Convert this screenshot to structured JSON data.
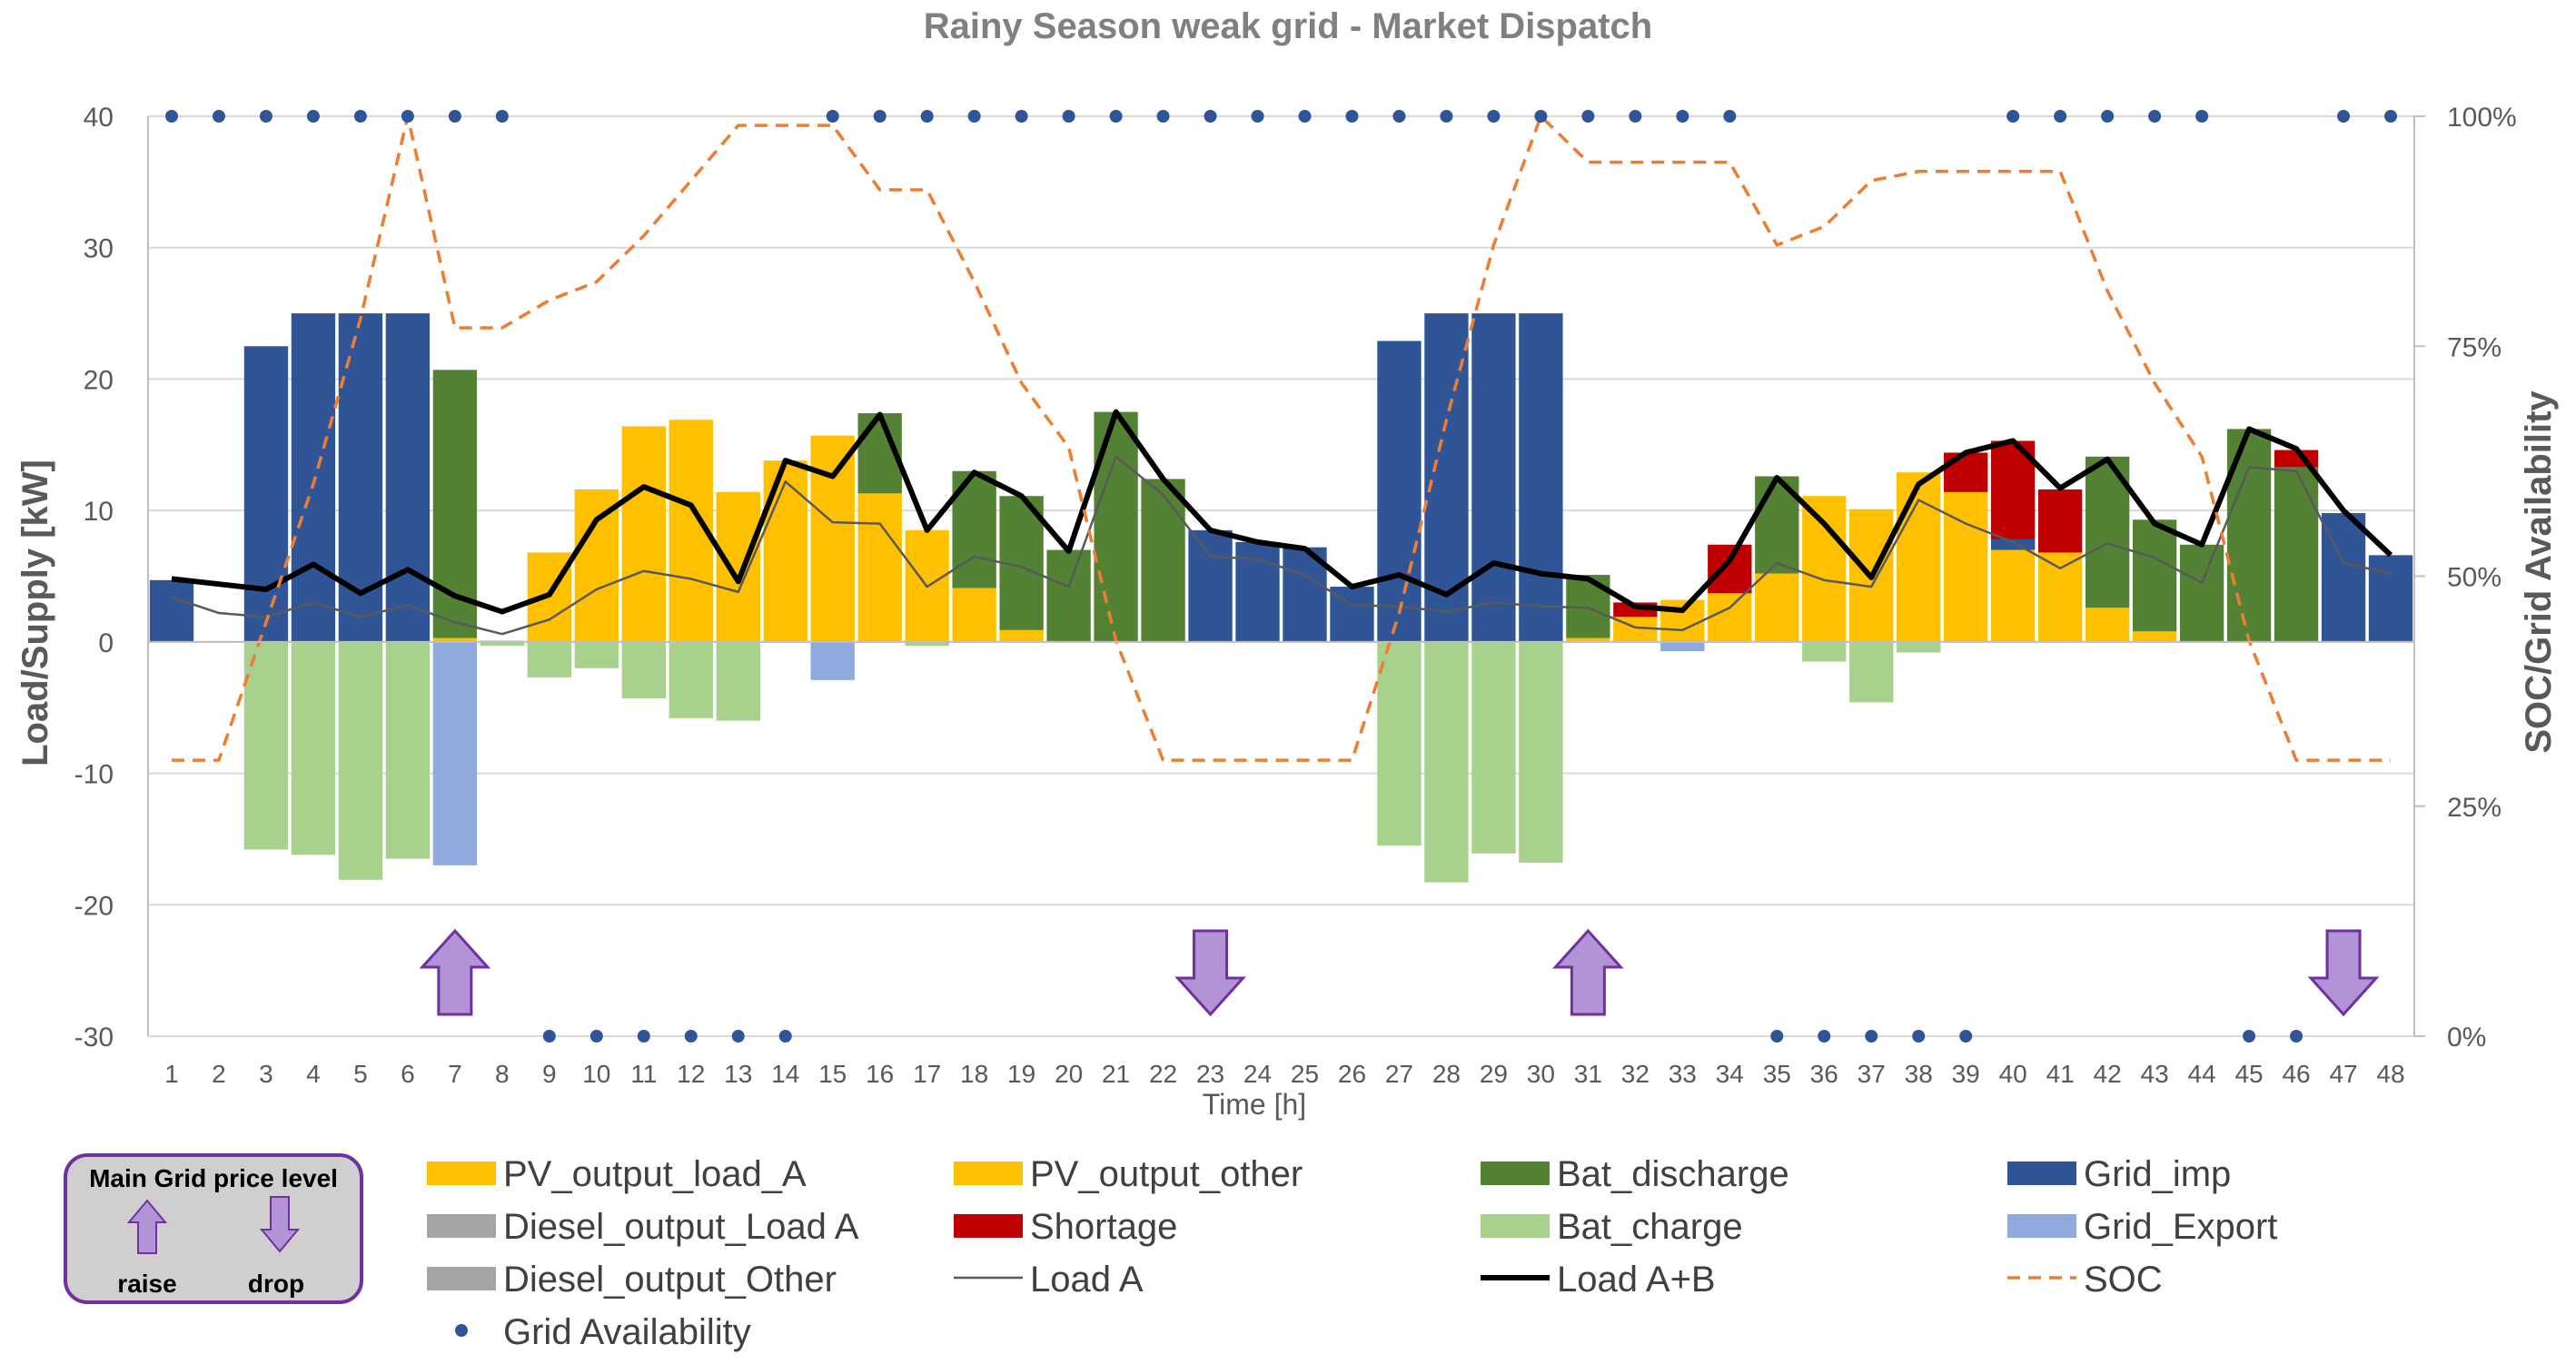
{
  "chart_data": {
    "type": "bar",
    "title": "Rainy Season weak grid - Market Dispatch",
    "xlabel": "Time [h]",
    "ylabel": "Load/Supply [kW]",
    "y2label": "SOC/Grid Availability",
    "ylim": [
      -30,
      40
    ],
    "y_ticks": [
      "-30",
      "-20",
      "-10",
      "0",
      "10",
      "20",
      "30",
      "40"
    ],
    "y2lim": [
      0,
      1
    ],
    "y2_ticks": [
      "0%",
      "25%",
      "50%",
      "75%",
      "100%"
    ],
    "categories": [
      "1",
      "2",
      "3",
      "4",
      "5",
      "6",
      "7",
      "8",
      "9",
      "10",
      "11",
      "12",
      "13",
      "14",
      "15",
      "16",
      "17",
      "18",
      "19",
      "20",
      "21",
      "22",
      "23",
      "24",
      "25",
      "26",
      "27",
      "28",
      "29",
      "30",
      "31",
      "32",
      "33",
      "34",
      "35",
      "36",
      "37",
      "38",
      "39",
      "40",
      "41",
      "42",
      "43",
      "44",
      "45",
      "46",
      "47",
      "48"
    ],
    "stacked": true,
    "series": [
      {
        "name": "PV_output_load_A",
        "color": "#FFC000",
        "kind": "bar",
        "values": [
          0,
          0,
          0,
          0,
          0,
          0,
          0.3,
          0.1,
          6.8,
          11.6,
          16.4,
          16.9,
          11.4,
          13.8,
          15.7,
          11.3,
          8.5,
          4.1,
          0.9,
          0,
          0,
          0,
          0,
          0,
          0,
          0,
          0,
          0,
          0,
          0,
          0.3,
          1.9,
          3.2,
          3.7,
          5.2,
          11.1,
          10.1,
          12.9,
          11.4,
          7.0,
          6.8,
          2.6,
          0.8,
          0,
          0,
          0,
          0,
          0
        ]
      },
      {
        "name": "PV_output_other",
        "color": "#FFC000",
        "kind": "bar",
        "values": [
          0,
          0,
          0,
          0,
          0,
          0,
          0,
          0,
          0,
          0,
          0,
          0,
          0,
          0,
          0,
          0,
          0,
          0,
          0,
          0,
          0,
          0,
          0,
          0,
          0,
          0,
          0,
          0,
          0,
          0,
          0,
          0,
          0,
          0,
          0,
          0,
          0,
          0,
          0,
          0,
          0,
          0,
          0,
          0,
          0,
          0,
          0,
          0
        ]
      },
      {
        "name": "Bat_discharge",
        "color": "#548235",
        "kind": "bar",
        "values": [
          0,
          0,
          0,
          0,
          0,
          0,
          20.4,
          0,
          0,
          0,
          0,
          0,
          0,
          0,
          0,
          6.1,
          0,
          8.9,
          10.2,
          7.0,
          17.5,
          12.4,
          0,
          0,
          0,
          0,
          0,
          0,
          0,
          0,
          4.8,
          0,
          0,
          0,
          7.4,
          0,
          0,
          0,
          0,
          0,
          0,
          11.5,
          8.5,
          7.4,
          16.2,
          13.3,
          0,
          0
        ]
      },
      {
        "name": "Grid_imp",
        "color": "#2F5597",
        "kind": "bar",
        "values": [
          4.7,
          0,
          22.5,
          25.0,
          25.0,
          25.0,
          0,
          0,
          0,
          0,
          0,
          0,
          0,
          0,
          0,
          0,
          0,
          0,
          0,
          0,
          0,
          0,
          8.5,
          7.6,
          7.2,
          4.2,
          22.9,
          25.0,
          25.0,
          25.0,
          0,
          0,
          0,
          0,
          0,
          0,
          0,
          0,
          0,
          0.8,
          0,
          0,
          0,
          0,
          0,
          0,
          9.8,
          6.6
        ]
      },
      {
        "name": "Diesel_output_Load A",
        "color": "#A5A5A5",
        "kind": "bar",
        "values": [
          0,
          0,
          0,
          0,
          0,
          0,
          0,
          0,
          0,
          0,
          0,
          0,
          0,
          0,
          0,
          0,
          0,
          0,
          0,
          0,
          0,
          0,
          0,
          0,
          0,
          0,
          0,
          0,
          0,
          0,
          0,
          0,
          0,
          0,
          0,
          0,
          0,
          0,
          0,
          0,
          0,
          0,
          0,
          0,
          0,
          0,
          0,
          0
        ]
      },
      {
        "name": "Shortage",
        "color": "#C00000",
        "kind": "bar",
        "values": [
          0,
          0,
          0,
          0,
          0,
          0,
          0,
          0,
          0,
          0,
          0,
          0,
          0,
          0,
          0,
          0,
          0,
          0,
          0,
          0,
          0,
          0,
          0,
          0,
          0,
          0,
          0,
          0,
          0,
          0,
          0,
          1.1,
          0,
          3.7,
          0,
          0,
          0,
          0,
          3.0,
          7.5,
          4.8,
          0,
          0,
          0,
          0,
          1.3,
          0,
          0
        ]
      },
      {
        "name": "Bat_charge",
        "color": "#A9D18E",
        "kind": "bar",
        "values": [
          0,
          0,
          -15.8,
          -16.2,
          -18.1,
          -16.5,
          0,
          -0.3,
          -2.7,
          -2.0,
          -4.3,
          -5.8,
          -6.0,
          0,
          0,
          0,
          -0.3,
          0,
          0,
          0,
          0,
          0,
          0,
          0,
          0,
          0,
          -15.5,
          -18.3,
          -16.1,
          -16.8,
          0,
          0,
          0,
          0,
          0,
          -1.5,
          -4.6,
          -0.8,
          0,
          0,
          0,
          0,
          0,
          0,
          0,
          0,
          0,
          0
        ]
      },
      {
        "name": "Grid_Export",
        "color": "#8FAADC",
        "kind": "bar",
        "values": [
          0,
          0,
          0,
          0,
          0,
          0,
          -17.0,
          0,
          0,
          0,
          0,
          0,
          0,
          0,
          -2.9,
          0,
          0,
          0,
          0,
          0,
          0,
          0,
          0,
          0,
          0,
          0,
          0,
          0,
          0,
          0,
          0,
          0,
          -0.7,
          0,
          0,
          0,
          0,
          0,
          0,
          0,
          0,
          0,
          0,
          0,
          0,
          0,
          0,
          0
        ]
      },
      {
        "name": "Diesel_output_Other",
        "color": "#A5A5A5",
        "kind": "bar",
        "values": [
          0,
          0,
          0,
          0,
          0,
          0,
          0,
          0,
          0,
          0,
          0,
          0,
          0,
          0,
          0,
          0,
          0,
          0,
          0,
          0,
          0,
          0,
          0,
          0,
          0,
          0,
          0,
          0,
          0,
          0,
          0,
          0,
          0,
          0,
          0,
          0,
          0,
          0,
          0,
          0,
          0,
          0,
          0,
          0,
          0,
          0,
          0,
          0
        ]
      },
      {
        "name": "Load A",
        "color": "#595959",
        "kind": "line",
        "values": [
          3.4,
          2.2,
          1.9,
          3.0,
          1.9,
          2.8,
          1.5,
          0.6,
          1.7,
          4.0,
          5.4,
          4.8,
          3.8,
          12.2,
          9.1,
          9.0,
          4.2,
          6.5,
          5.7,
          4.2,
          14.1,
          11.2,
          6.5,
          6.3,
          5.1,
          2.8,
          2.7,
          2.3,
          3.0,
          2.7,
          2.6,
          1.1,
          0.9,
          2.6,
          6.0,
          4.7,
          4.2,
          10.8,
          9.0,
          7.6,
          5.6,
          7.5,
          6.4,
          4.5,
          13.3,
          13.0,
          6.0,
          5.2
        ]
      },
      {
        "name": "Load A+B",
        "color": "#000000",
        "kind": "line",
        "values": [
          4.8,
          4.4,
          4.0,
          5.9,
          3.7,
          5.5,
          3.5,
          2.3,
          3.6,
          9.3,
          11.8,
          10.4,
          4.6,
          13.8,
          12.6,
          17.3,
          8.5,
          12.9,
          11.1,
          6.9,
          17.5,
          12.4,
          8.5,
          7.6,
          7.1,
          4.2,
          5.1,
          3.6,
          6.0,
          5.2,
          4.8,
          2.7,
          2.4,
          6.2,
          12.5,
          9.0,
          4.9,
          12.0,
          14.4,
          15.3,
          11.7,
          13.9,
          9.0,
          7.4,
          16.2,
          14.7,
          10.0,
          6.6
        ]
      },
      {
        "name": "SOC",
        "color": "#ED7D31",
        "kind": "line",
        "axis": "secondary",
        "dashed": true,
        "values": [
          0.3,
          0.3,
          0.45,
          0.6,
          0.78,
          1.0,
          0.77,
          0.77,
          0.8,
          0.82,
          0.87,
          0.93,
          0.99,
          0.99,
          0.99,
          0.92,
          0.92,
          0.82,
          0.71,
          0.64,
          0.43,
          0.3,
          0.3,
          0.3,
          0.3,
          0.3,
          0.46,
          0.67,
          0.86,
          1.0,
          0.95,
          0.95,
          0.95,
          0.95,
          0.86,
          0.88,
          0.93,
          0.94,
          0.94,
          0.94,
          0.94,
          0.81,
          0.71,
          0.63,
          0.43,
          0.3,
          0.3,
          0.3
        ]
      },
      {
        "name": "Grid Availability",
        "color": "#2F5597",
        "kind": "scatter",
        "axis": "secondary",
        "values": [
          1,
          1,
          1,
          1,
          1,
          1,
          1,
          1,
          0,
          0,
          0,
          0,
          0,
          0,
          1,
          1,
          1,
          1,
          1,
          1,
          1,
          1,
          1,
          1,
          1,
          1,
          1,
          1,
          1,
          1,
          1,
          1,
          1,
          1,
          0,
          0,
          0,
          0,
          0,
          1,
          1,
          1,
          1,
          1,
          0,
          0,
          1,
          1
        ]
      }
    ],
    "price_arrows": [
      {
        "hour": 7,
        "direction": "raise"
      },
      {
        "hour": 23,
        "direction": "drop"
      },
      {
        "hour": 31,
        "direction": "raise"
      },
      {
        "hour": 47,
        "direction": "drop"
      }
    ],
    "price_legend": {
      "title": "Main Grid price level",
      "raise_label": "raise",
      "drop_label": "drop"
    },
    "legend": [
      {
        "label": "PV_output_load_A",
        "series": "PV_output_load_A",
        "style": "box"
      },
      {
        "label": "PV_output_other",
        "series": "PV_output_other",
        "style": "box"
      },
      {
        "label": "Bat_discharge",
        "series": "Bat_discharge",
        "style": "box"
      },
      {
        "label": "Grid_imp",
        "series": "Grid_imp",
        "style": "box"
      },
      {
        "label": "Diesel_output_Load A",
        "series": "Diesel_output_Load A",
        "style": "box"
      },
      {
        "label": "Shortage",
        "series": "Shortage",
        "style": "box"
      },
      {
        "label": "Bat_charge",
        "series": "Bat_charge",
        "style": "box"
      },
      {
        "label": "Grid_Export",
        "series": "Grid_Export",
        "style": "box"
      },
      {
        "label": "Diesel_output_Other",
        "series": "Diesel_output_Other",
        "style": "box"
      },
      {
        "label": "Load A",
        "series": "Load A",
        "style": "thin-line"
      },
      {
        "label": "Load A+B",
        "series": "Load A+B",
        "style": "thick-line"
      },
      {
        "label": "SOC",
        "series": "SOC",
        "style": "dash-line"
      },
      {
        "label": "Grid Availability",
        "series": "Grid Availability",
        "style": "dot"
      }
    ],
    "legend_placement": "bottom",
    "gridlines": true
  }
}
